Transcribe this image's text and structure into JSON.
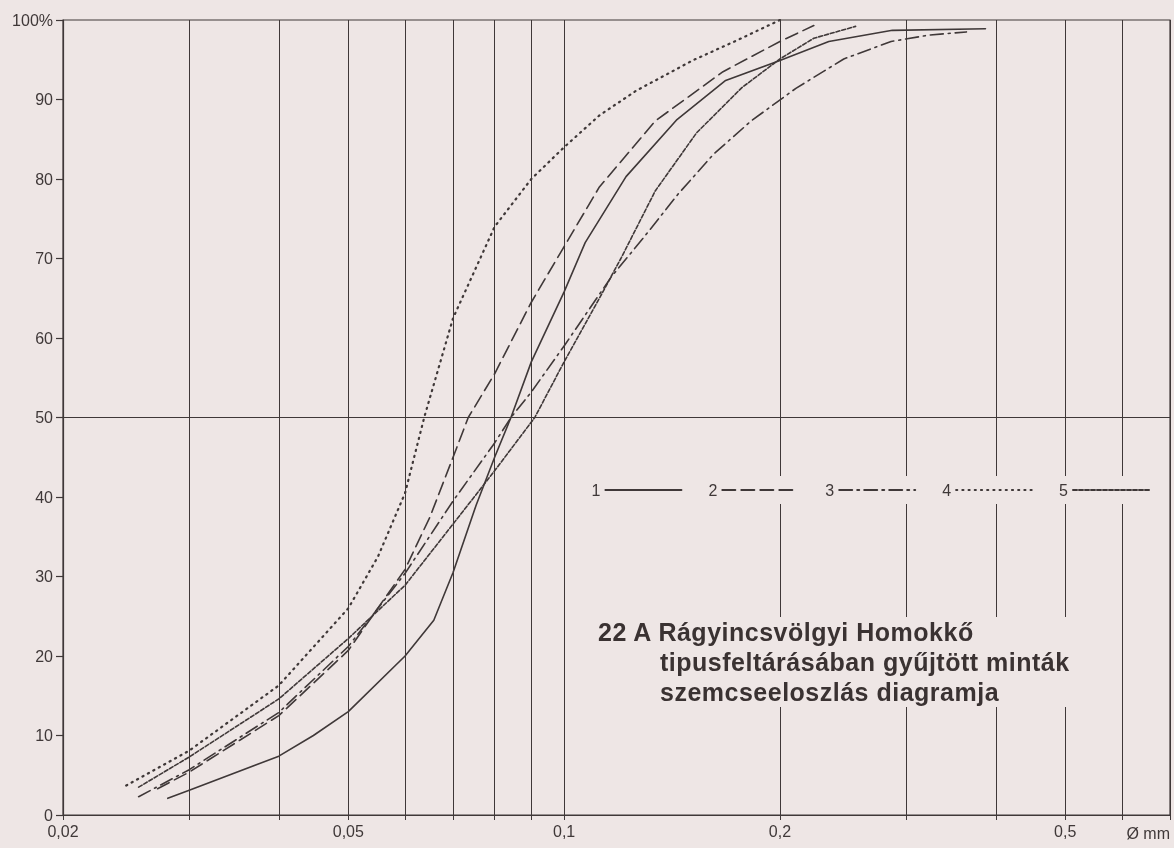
{
  "chart_data": {
    "type": "line",
    "title": "22 A Rágyincsvölgyi Homokkő tipusfeltárásában gyűjtött minták szemcseeloszlás diagramja",
    "xlabel": "Ø mm",
    "log": "x",
    "grid": "x",
    "legend": "right",
    "marker": "none",
    "xlim": [
      0.02,
      0.7
    ],
    "ylim": [
      0,
      100
    ],
    "xticks": [
      {
        "value": 0.02,
        "label": "0,02"
      },
      {
        "value": 0.03,
        "label": null
      },
      {
        "value": 0.04,
        "label": null
      },
      {
        "value": 0.05,
        "label": "0,05"
      },
      {
        "value": 0.06,
        "label": null
      },
      {
        "value": 0.07,
        "label": null
      },
      {
        "value": 0.08,
        "label": null
      },
      {
        "value": 0.09,
        "label": null
      },
      {
        "value": 0.1,
        "label": "0,1"
      },
      {
        "value": 0.2,
        "label": "0,2"
      },
      {
        "value": 0.3,
        "label": null
      },
      {
        "value": 0.4,
        "label": null
      },
      {
        "value": 0.5,
        "label": "0,5"
      },
      {
        "value": 0.6,
        "label": null
      },
      {
        "value": 0.7,
        "label": null
      }
    ],
    "yticks": [
      0,
      10,
      20,
      30,
      40,
      50,
      60,
      70,
      80,
      90,
      {
        "value": 100,
        "label": "100%"
      }
    ],
    "ref_lines": [
      {
        "axis": "y",
        "value": 50
      }
    ],
    "series": [
      {
        "name": "1",
        "color": "#3f3838",
        "line_style": "solid",
        "x": [
          0.028,
          0.03,
          0.04,
          0.0447,
          0.05,
          0.06,
          0.0658,
          0.07,
          0.0754,
          0.08,
          0.0843,
          0.09,
          0.1,
          0.107,
          0.122,
          0.1434,
          0.168,
          0.2,
          0.234,
          0.287,
          0.387
        ],
        "values": [
          2.1,
          3.1,
          7.4,
          10,
          13,
          20,
          24.5,
          30.5,
          39,
          45,
          50,
          57,
          65.8,
          72,
          80.3,
          87.4,
          92.4,
          94.9,
          97.3,
          98.7,
          98.9
        ]
      },
      {
        "name": "2",
        "color": "#3f3838",
        "line_style": "dashed",
        "x": [
          0.0271,
          0.03,
          0.04,
          0.05,
          0.06,
          0.065,
          0.07,
          0.0735,
          0.08,
          0.09,
          0.1,
          0.112,
          0.134,
          0.1666,
          0.2,
          0.223
        ],
        "values": [
          3.3,
          5.4,
          12.5,
          20.7,
          30.9,
          37.5,
          45,
          50,
          55.5,
          64.5,
          71.5,
          79,
          87.3,
          93.5,
          97.3,
          99.3
        ]
      },
      {
        "name": "3",
        "color": "#3f3838",
        "line_style": "dashdot",
        "x": [
          0.0255,
          0.03,
          0.04,
          0.05,
          0.06,
          0.07,
          0.08,
          0.0843,
          0.09,
          0.1,
          0.1164,
          0.1298,
          0.1442,
          0.1615,
          0.1823,
          0.2105,
          0.2455,
          0.2858,
          0.3225,
          0.364
        ],
        "values": [
          2.3,
          5.7,
          12.9,
          21.2,
          30.4,
          39.5,
          46.8,
          50,
          53.2,
          59,
          67.7,
          72.9,
          78.1,
          83.1,
          87.3,
          91.4,
          95.1,
          97.3,
          98.1,
          98.5
        ]
      },
      {
        "name": "4",
        "color": "#3f3838",
        "line_style": "dotted",
        "x": [
          0.0245,
          0.03,
          0.04,
          0.05,
          0.055,
          0.06,
          0.0638,
          0.07,
          0.08,
          0.09,
          0.1,
          0.112,
          0.126,
          0.151,
          0.1748,
          0.2
        ],
        "values": [
          3.7,
          8.1,
          16.3,
          26,
          32.5,
          40.5,
          50,
          62.5,
          74,
          80,
          84,
          88,
          91.1,
          94.9,
          97.5,
          100
        ]
      },
      {
        "name": "5",
        "color": "#3f3838",
        "line_style": "wavy",
        "x": [
          0.0255,
          0.03,
          0.04,
          0.05,
          0.06,
          0.07,
          0.08,
          0.091,
          0.1,
          0.112,
          0.12,
          0.134,
          0.153,
          0.177,
          0.2,
          0.223,
          0.255
        ],
        "values": [
          3.5,
          7.3,
          14.6,
          22.2,
          28.9,
          36.6,
          43.3,
          50,
          57,
          65,
          70,
          78.5,
          85.8,
          91.5,
          95.1,
          97.7,
          99.2
        ]
      }
    ]
  }
}
